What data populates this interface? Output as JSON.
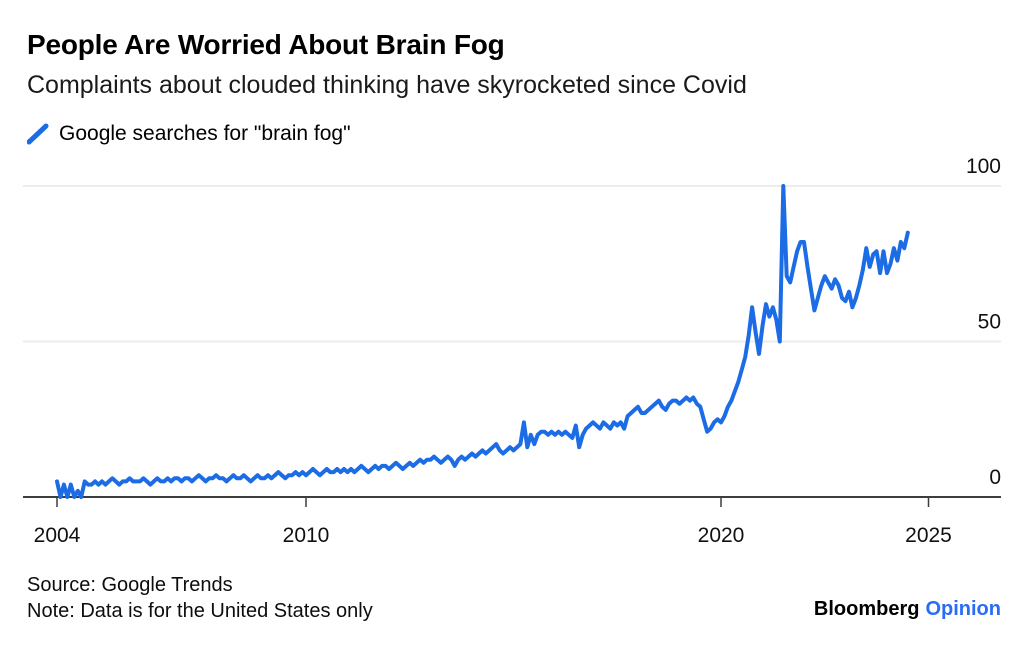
{
  "header": {
    "title": "People Are Worried About Brain Fog",
    "subtitle": "Complaints about clouded thinking have skyrocketed since Covid"
  },
  "legend": {
    "label": "Google searches for \"brain fog\""
  },
  "footer": {
    "source": "Source: Google Trends",
    "note": "Note: Data is for the United States only",
    "brand": "Bloomberg",
    "brand_suffix": "Opinion"
  },
  "colors": {
    "line": "#1b6ce5",
    "brand_blue": "#2b6cf4",
    "grid": "#ececec",
    "axis": "#3d3d3d",
    "label": "#111111"
  },
  "chart_data": {
    "type": "line",
    "title": "People Are Worried About Brain Fog",
    "subtitle": "Complaints about clouded thinking have skyrocketed since Covid",
    "xlabel": "",
    "ylabel": "",
    "grid": "horizontal",
    "legend_position": "top-left",
    "xlim": [
      2004,
      2025.75
    ],
    "ylim": [
      0,
      100
    ],
    "x_start_year": 2004,
    "points_per_year": 12,
    "xticks": [
      {
        "label": "2004",
        "year": 2004
      },
      {
        "label": "2010",
        "year": 2010
      },
      {
        "label": "2020",
        "year": 2020
      },
      {
        "label": "2025",
        "year": 2025
      }
    ],
    "yticks": [
      {
        "label": "100",
        "value": 100
      },
      {
        "label": "50",
        "value": 50
      },
      {
        "label": "0",
        "value": 0
      }
    ],
    "series": [
      {
        "name": "Google searches for \"brain fog\"",
        "values": [
          5,
          0,
          4,
          0,
          4,
          0,
          2,
          0,
          5,
          4,
          4,
          5,
          4,
          5,
          4,
          5,
          6,
          5,
          4,
          5,
          5,
          6,
          5,
          5,
          5,
          6,
          5,
          4,
          5,
          6,
          5,
          5,
          6,
          5,
          6,
          6,
          5,
          6,
          6,
          5,
          6,
          7,
          6,
          5,
          6,
          6,
          7,
          6,
          6,
          5,
          6,
          7,
          6,
          6,
          7,
          6,
          5,
          6,
          7,
          6,
          6,
          7,
          6,
          7,
          8,
          7,
          6,
          7,
          7,
          8,
          7,
          8,
          7,
          8,
          9,
          8,
          7,
          8,
          9,
          8,
          8,
          9,
          8,
          9,
          8,
          9,
          8,
          9,
          10,
          9,
          8,
          9,
          10,
          9,
          10,
          10,
          9,
          10,
          11,
          10,
          9,
          10,
          11,
          10,
          11,
          12,
          11,
          12,
          12,
          13,
          12,
          11,
          12,
          13,
          12,
          10,
          12,
          13,
          12,
          13,
          14,
          13,
          14,
          15,
          14,
          15,
          16,
          17,
          15,
          14,
          15,
          16,
          15,
          16,
          17,
          24,
          16,
          20,
          17,
          20,
          21,
          21,
          20,
          21,
          20,
          21,
          20,
          21,
          20,
          19,
          23,
          16,
          20,
          22,
          23,
          24,
          23,
          22,
          24,
          23,
          22,
          24,
          23,
          24,
          22,
          26,
          27,
          28,
          29,
          27,
          27,
          28,
          29,
          30,
          31,
          29,
          28,
          30,
          31,
          31,
          30,
          31,
          32,
          31,
          32,
          30,
          29,
          25,
          21,
          22,
          24,
          25,
          24,
          26,
          29,
          31,
          34,
          37,
          41,
          45,
          52,
          61,
          53,
          46,
          55,
          62,
          58,
          61,
          57,
          50,
          100,
          71,
          69,
          74,
          79,
          82,
          82,
          74,
          67,
          60,
          64,
          68,
          71,
          69,
          67,
          70,
          68,
          64,
          63,
          66,
          61,
          64,
          68,
          73,
          80,
          74,
          78,
          79,
          72,
          79,
          72,
          75,
          80,
          76,
          82,
          80,
          85
        ]
      }
    ]
  }
}
